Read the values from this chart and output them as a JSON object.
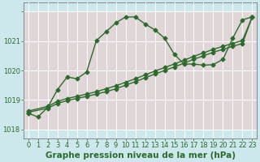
{
  "title": "Graphe pression niveau de la mer (hPa)",
  "bg_color": "#cde8ec",
  "pink_color": "#f0c8c8",
  "grid_color": "#ffffff",
  "line_color": "#2d6a2d",
  "ylim": [
    1017.7,
    1022.3
  ],
  "xlim": [
    -0.5,
    23.5
  ],
  "yticks": [
    1018,
    1019,
    1020,
    1021,
    1022
  ],
  "ytick_labels": [
    "1018",
    "1019",
    "1020",
    "1021",
    ""
  ],
  "xticks": [
    0,
    1,
    2,
    3,
    4,
    5,
    6,
    7,
    8,
    9,
    10,
    11,
    12,
    13,
    14,
    15,
    16,
    17,
    18,
    19,
    20,
    21,
    22,
    23
  ],
  "series_main": {
    "x": [
      0,
      1,
      2,
      3,
      4,
      5,
      6,
      7,
      8,
      9,
      10,
      11,
      12,
      13,
      14,
      15,
      16,
      17,
      18,
      19,
      20,
      21,
      22,
      23
    ],
    "y": [
      1018.55,
      1018.42,
      1018.75,
      1019.35,
      1019.78,
      1019.72,
      1019.95,
      1021.02,
      1021.32,
      1021.62,
      1021.82,
      1021.82,
      1021.58,
      1021.38,
      1021.1,
      1020.55,
      1020.22,
      1020.22,
      1020.18,
      1020.2,
      1020.38,
      1021.1,
      1021.72,
      1021.82
    ]
  },
  "series_line1": {
    "x": [
      0,
      2,
      3,
      4,
      5,
      6,
      7,
      8,
      9,
      10,
      11,
      12,
      13,
      14,
      15,
      16,
      17,
      18,
      19,
      20,
      21,
      22,
      23
    ],
    "y": [
      1018.58,
      1018.72,
      1018.88,
      1018.98,
      1019.05,
      1019.12,
      1019.2,
      1019.28,
      1019.38,
      1019.5,
      1019.62,
      1019.75,
      1019.88,
      1020.0,
      1020.12,
      1020.25,
      1020.38,
      1020.5,
      1020.62,
      1020.72,
      1020.82,
      1020.92,
      1021.82
    ]
  },
  "series_line2": {
    "x": [
      0,
      2,
      3,
      4,
      5,
      6,
      7,
      8,
      9,
      10,
      11,
      12,
      13,
      14,
      15,
      16,
      17,
      18,
      19,
      20,
      21,
      22,
      23
    ],
    "y": [
      1018.62,
      1018.78,
      1018.95,
      1019.05,
      1019.12,
      1019.2,
      1019.28,
      1019.38,
      1019.48,
      1019.6,
      1019.72,
      1019.85,
      1019.98,
      1020.1,
      1020.22,
      1020.35,
      1020.48,
      1020.6,
      1020.72,
      1020.82,
      1020.92,
      1021.02,
      1021.82
    ]
  },
  "marker": "D",
  "marker_size": 2.5,
  "linewidth": 1.0,
  "title_fontsize": 7.5,
  "tick_fontsize": 6.0
}
